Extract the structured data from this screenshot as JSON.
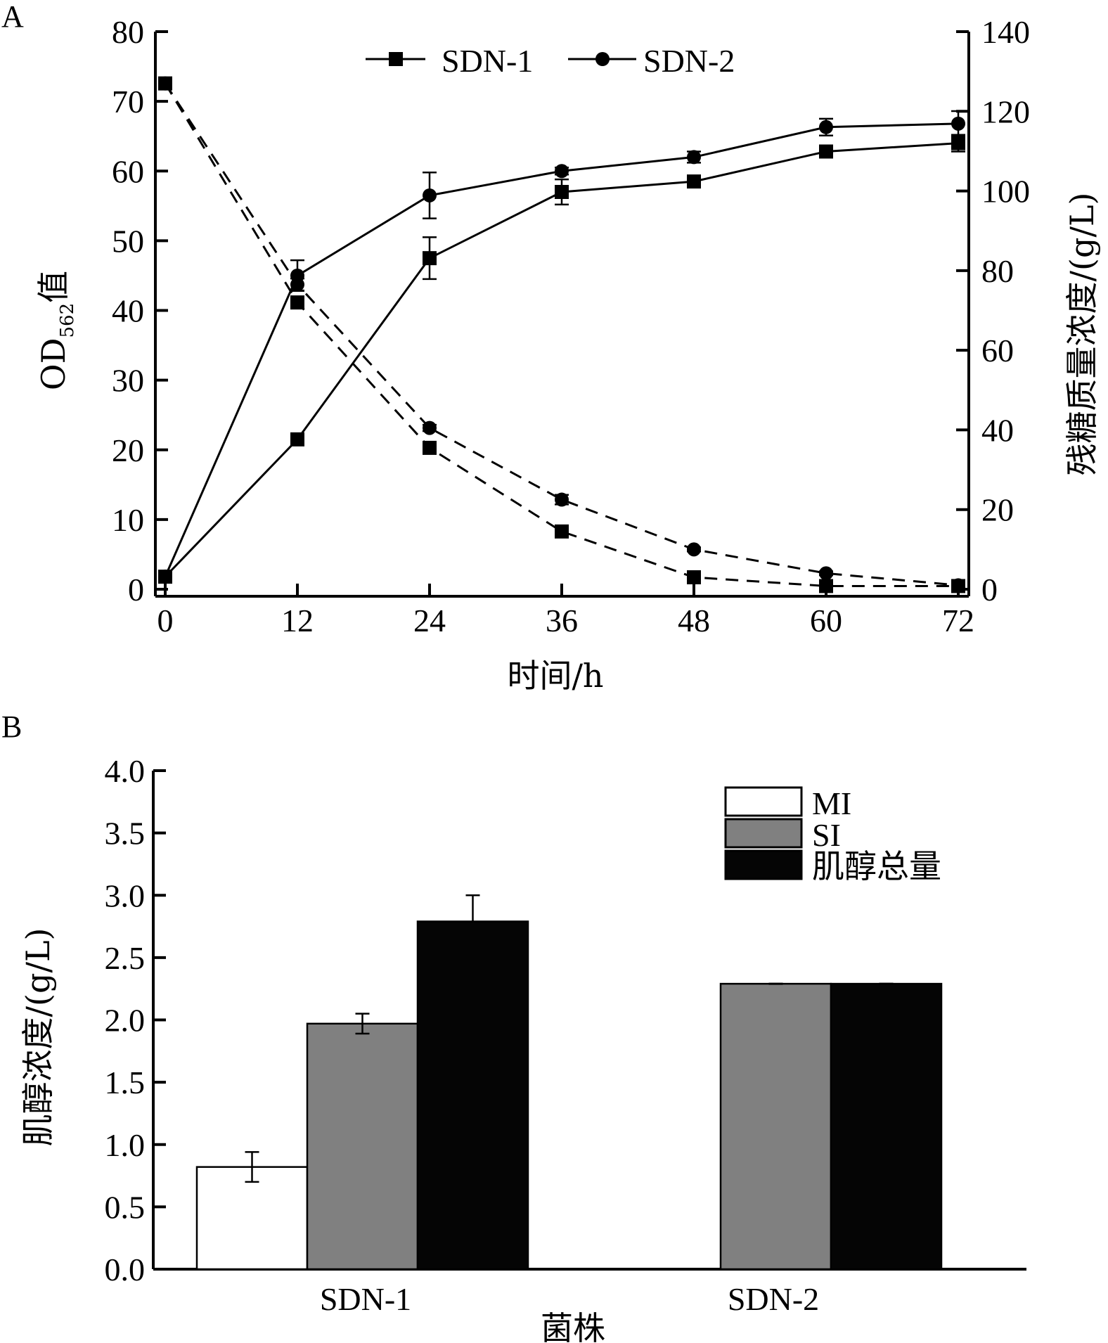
{
  "chart_data": [
    {
      "panel": "A",
      "type": "line",
      "title": "",
      "xlabel": "时间/h",
      "ylabel": "OD562值",
      "ylabel_main": "OD",
      "ylabel_sub": "562",
      "ylabel_suffix": "值",
      "y2label": "残糖质量浓度/(g/L)",
      "x": [
        0,
        12,
        24,
        36,
        48,
        60,
        72
      ],
      "xticks": [
        "0",
        "12",
        "24",
        "36",
        "48",
        "60",
        "72"
      ],
      "xlim": [
        0,
        72
      ],
      "ylim": [
        0,
        80
      ],
      "yticks": [
        "0",
        "10",
        "20",
        "30",
        "40",
        "50",
        "60",
        "70",
        "80"
      ],
      "y2lim": [
        0,
        140
      ],
      "y2ticks": [
        "0",
        "20",
        "40",
        "60",
        "80",
        "100",
        "120",
        "140"
      ],
      "grid": false,
      "legend_position": "top-center",
      "legend": [
        "SDN-1",
        "SDN-2"
      ],
      "series": [
        {
          "name": "SDN-1",
          "metric": "OD562",
          "axis": "left",
          "marker": "square",
          "line": "solid",
          "values": [
            1.8,
            21.5,
            47.5,
            57.0,
            58.5,
            62.8,
            64.0
          ],
          "errors": [
            0,
            0.5,
            3.0,
            1.8,
            0.5,
            0.5,
            1.2
          ]
        },
        {
          "name": "SDN-2",
          "metric": "OD562",
          "axis": "left",
          "marker": "circle",
          "line": "solid",
          "values": [
            1.8,
            45.0,
            56.5,
            60.0,
            62.0,
            66.3,
            66.8
          ],
          "errors": [
            0,
            2.2,
            3.3,
            0.5,
            0.8,
            1.2,
            1.8
          ]
        },
        {
          "name": "SDN-1",
          "metric": "residual_sugar",
          "axis": "right",
          "marker": "square",
          "line": "dashed",
          "values": [
            127,
            72,
            35.5,
            14.5,
            3.0,
            0.8,
            0.8
          ],
          "errors": [
            0,
            1.5,
            0.8,
            0.8,
            0.5,
            0.3,
            0.3
          ]
        },
        {
          "name": "SDN-2",
          "metric": "residual_sugar",
          "axis": "right",
          "marker": "circle",
          "line": "dashed",
          "values": [
            127,
            76.5,
            40.5,
            22.5,
            10.0,
            4.0,
            1.0
          ],
          "errors": [
            0,
            1.5,
            0.8,
            1.2,
            0.5,
            0.5,
            0.3
          ]
        }
      ]
    },
    {
      "panel": "B",
      "type": "bar",
      "title": "",
      "xlabel": "菌株",
      "ylabel": "肌醇浓度/(g/L)",
      "categories": [
        "SDN-1",
        "SDN-2"
      ],
      "ylim": [
        0,
        4.0
      ],
      "yticks": [
        "0.0",
        "0.5",
        "1.0",
        "1.5",
        "2.0",
        "2.5",
        "3.0",
        "3.5",
        "4.0"
      ],
      "grid": false,
      "legend_position": "top-right",
      "series": [
        {
          "name": "MI",
          "color": "#ffffff",
          "values": [
            0.82,
            0.0
          ],
          "errors": [
            0.12,
            0.0
          ]
        },
        {
          "name": "SI",
          "color": "#808080",
          "values": [
            1.97,
            2.29
          ],
          "errors": [
            0.08,
            0.0
          ]
        },
        {
          "name": "肌醇总量",
          "color": "#050505",
          "values": [
            2.79,
            2.29
          ],
          "errors": [
            0.21,
            0.0
          ]
        }
      ]
    }
  ],
  "colors": {
    "ink": "#000000",
    "gray_bar": "#808080",
    "black_bar": "#050505",
    "white_bar": "#ffffff"
  }
}
